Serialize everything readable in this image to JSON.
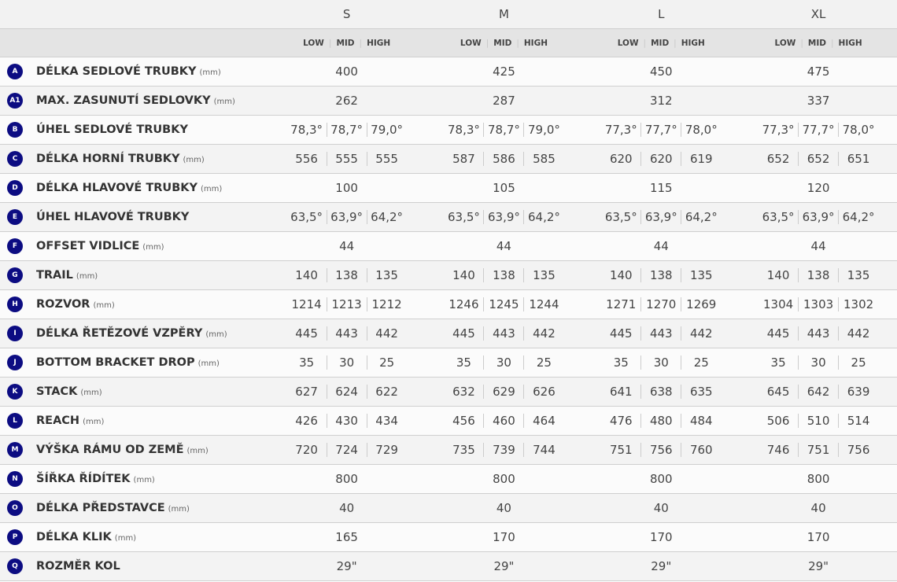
{
  "sizes": [
    "S",
    "M",
    "L",
    "XL"
  ],
  "positions": [
    "LOW",
    "MID",
    "HIGH"
  ],
  "unit": "(mm)",
  "badge_color": "#0c0c82",
  "rows": [
    {
      "letter": "A",
      "label": "DÉLKA SEDLOVÉ TRUBKY",
      "unit": true,
      "values": [
        "400",
        "425",
        "450",
        "475"
      ]
    },
    {
      "letter": "A1",
      "label": "MAX. ZASUNUTÍ SEDLOVKY",
      "unit": true,
      "values": [
        "262",
        "287",
        "312",
        "337"
      ]
    },
    {
      "letter": "B",
      "label": "ÚHEL SEDLOVÉ TRUBKY",
      "unit": false,
      "values": [
        [
          "78,3°",
          "78,7°",
          "79,0°"
        ],
        [
          "78,3°",
          "78,7°",
          "79,0°"
        ],
        [
          "77,3°",
          "77,7°",
          "78,0°"
        ],
        [
          "77,3°",
          "77,7°",
          "78,0°"
        ]
      ]
    },
    {
      "letter": "C",
      "label": "DÉLKA HORNÍ TRUBKY",
      "unit": true,
      "values": [
        [
          "556",
          "555",
          "555"
        ],
        [
          "587",
          "586",
          "585"
        ],
        [
          "620",
          "620",
          "619"
        ],
        [
          "652",
          "652",
          "651"
        ]
      ]
    },
    {
      "letter": "D",
      "label": "DÉLKA HLAVOVÉ TRUBKY",
      "unit": true,
      "values": [
        "100",
        "105",
        "115",
        "120"
      ]
    },
    {
      "letter": "E",
      "label": "ÚHEL HLAVOVÉ TRUBKY",
      "unit": false,
      "values": [
        [
          "63,5°",
          "63,9°",
          "64,2°"
        ],
        [
          "63,5°",
          "63,9°",
          "64,2°"
        ],
        [
          "63,5°",
          "63,9°",
          "64,2°"
        ],
        [
          "63,5°",
          "63,9°",
          "64,2°"
        ]
      ]
    },
    {
      "letter": "F",
      "label": "OFFSET VIDLICE",
      "unit": true,
      "values": [
        "44",
        "44",
        "44",
        "44"
      ]
    },
    {
      "letter": "G",
      "label": "TRAIL",
      "unit": true,
      "values": [
        [
          "140",
          "138",
          "135"
        ],
        [
          "140",
          "138",
          "135"
        ],
        [
          "140",
          "138",
          "135"
        ],
        [
          "140",
          "138",
          "135"
        ]
      ]
    },
    {
      "letter": "H",
      "label": "ROZVOR",
      "unit": true,
      "values": [
        [
          "1214",
          "1213",
          "1212"
        ],
        [
          "1246",
          "1245",
          "1244"
        ],
        [
          "1271",
          "1270",
          "1269"
        ],
        [
          "1304",
          "1303",
          "1302"
        ]
      ]
    },
    {
      "letter": "I",
      "label": "DÉLKA ŘETĚZOVÉ VZPĚRY",
      "unit": true,
      "values": [
        [
          "445",
          "443",
          "442"
        ],
        [
          "445",
          "443",
          "442"
        ],
        [
          "445",
          "443",
          "442"
        ],
        [
          "445",
          "443",
          "442"
        ]
      ]
    },
    {
      "letter": "J",
      "label": "BOTTOM BRACKET DROP",
      "unit": true,
      "values": [
        [
          "35",
          "30",
          "25"
        ],
        [
          "35",
          "30",
          "25"
        ],
        [
          "35",
          "30",
          "25"
        ],
        [
          "35",
          "30",
          "25"
        ]
      ]
    },
    {
      "letter": "K",
      "label": "STACK",
      "unit": true,
      "values": [
        [
          "627",
          "624",
          "622"
        ],
        [
          "632",
          "629",
          "626"
        ],
        [
          "641",
          "638",
          "635"
        ],
        [
          "645",
          "642",
          "639"
        ]
      ]
    },
    {
      "letter": "L",
      "label": "REACH",
      "unit": true,
      "values": [
        [
          "426",
          "430",
          "434"
        ],
        [
          "456",
          "460",
          "464"
        ],
        [
          "476",
          "480",
          "484"
        ],
        [
          "506",
          "510",
          "514"
        ]
      ]
    },
    {
      "letter": "M",
      "label": "VÝŠKA RÁMU OD ZEMĚ",
      "unit": true,
      "values": [
        [
          "720",
          "724",
          "729"
        ],
        [
          "735",
          "739",
          "744"
        ],
        [
          "751",
          "756",
          "760"
        ],
        [
          "746",
          "751",
          "756"
        ]
      ]
    },
    {
      "letter": "N",
      "label": "ŠÍŘKA ŘÍDÍTEK",
      "unit": true,
      "values": [
        "800",
        "800",
        "800",
        "800"
      ]
    },
    {
      "letter": "O",
      "label": "DÉLKA PŘEDSTAVCE",
      "unit": true,
      "values": [
        "40",
        "40",
        "40",
        "40"
      ]
    },
    {
      "letter": "P",
      "label": "DÉLKA KLIK",
      "unit": true,
      "values": [
        "165",
        "170",
        "170",
        "170"
      ]
    },
    {
      "letter": "Q",
      "label": "ROZMĚR KOL",
      "unit": false,
      "values": [
        "29\"",
        "29\"",
        "29\"",
        "29\""
      ]
    }
  ]
}
